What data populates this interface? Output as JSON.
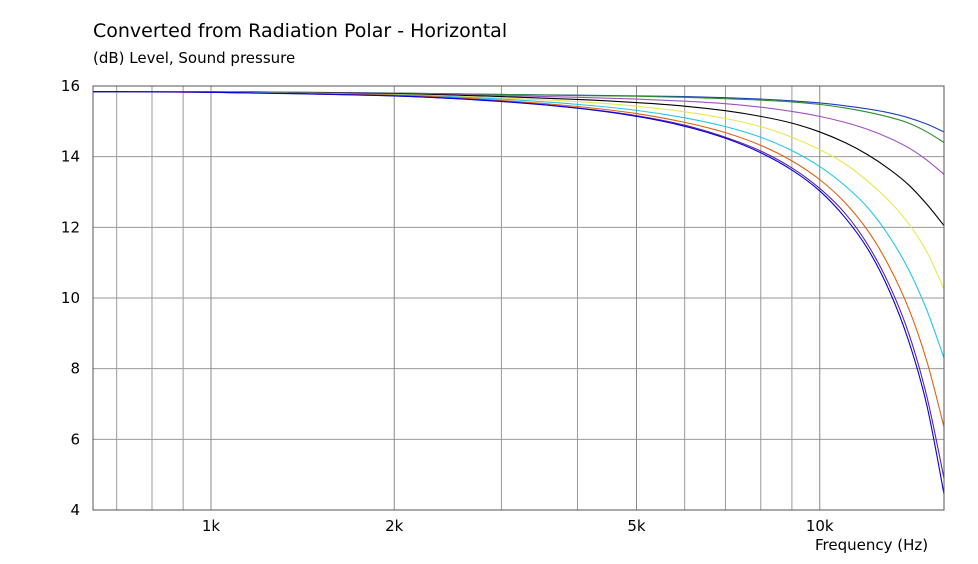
{
  "chart_data": {
    "type": "line",
    "title": "Converted from Radiation Polar - Horizontal",
    "ylabel": "(dB)  Level, Sound pressure",
    "xlabel": "Frequency  (Hz)",
    "x_scale": "log",
    "xlim": [
      640,
      16000
    ],
    "ylim": [
      4,
      16
    ],
    "y_ticks": [
      4,
      6,
      8,
      10,
      12,
      14,
      16
    ],
    "x_ticks": [
      {
        "value": 1000,
        "label": "1k"
      },
      {
        "value": 2000,
        "label": "2k"
      },
      {
        "value": 5000,
        "label": "5k"
      },
      {
        "value": 10000,
        "label": "10k"
      }
    ],
    "x_minor_gridlines": [
      700,
      800,
      900,
      3000,
      4000,
      6000,
      7000,
      8000,
      9000
    ],
    "grid": true,
    "x": [
      640,
      1000,
      2000,
      3000,
      4000,
      5000,
      6000,
      7000,
      8000,
      9000,
      10000,
      11000,
      12000,
      13000,
      14000,
      15000,
      16000
    ],
    "series": [
      {
        "color": "#1f3fbf",
        "values": [
          15.84,
          15.84,
          15.8,
          15.76,
          15.74,
          15.72,
          15.7,
          15.67,
          15.63,
          15.58,
          15.52,
          15.44,
          15.35,
          15.24,
          15.1,
          14.92,
          14.7
        ]
      },
      {
        "color": "#2e8b2e",
        "values": [
          15.84,
          15.84,
          15.8,
          15.76,
          15.73,
          15.71,
          15.68,
          15.64,
          15.6,
          15.55,
          15.48,
          15.38,
          15.26,
          15.12,
          14.95,
          14.7,
          14.4
        ]
      },
      {
        "color": "#a050c0",
        "values": [
          15.84,
          15.84,
          15.79,
          15.73,
          15.68,
          15.63,
          15.57,
          15.5,
          15.4,
          15.28,
          15.14,
          14.97,
          14.77,
          14.53,
          14.25,
          13.9,
          13.5
        ]
      },
      {
        "color": "#000000",
        "values": [
          15.84,
          15.83,
          15.78,
          15.7,
          15.62,
          15.53,
          15.43,
          15.3,
          15.14,
          14.95,
          14.7,
          14.4,
          14.05,
          13.65,
          13.2,
          12.65,
          12.05
        ]
      },
      {
        "color": "#e8e850",
        "values": [
          15.84,
          15.83,
          15.76,
          15.66,
          15.56,
          15.43,
          15.27,
          15.08,
          14.85,
          14.55,
          14.2,
          13.8,
          13.3,
          12.75,
          12.1,
          11.3,
          10.25
        ]
      },
      {
        "color": "#22c8e8",
        "values": [
          15.84,
          15.83,
          15.75,
          15.63,
          15.48,
          15.31,
          15.1,
          14.85,
          14.55,
          14.17,
          13.72,
          13.18,
          12.55,
          11.75,
          10.8,
          9.65,
          8.3
        ]
      },
      {
        "color": "#e06010",
        "values": [
          15.84,
          15.82,
          15.74,
          15.59,
          15.42,
          15.22,
          14.97,
          14.68,
          14.32,
          13.88,
          13.35,
          12.7,
          11.9,
          10.9,
          9.7,
          8.2,
          6.35
        ]
      },
      {
        "color": "#6020a0",
        "values": [
          15.84,
          15.82,
          15.72,
          15.57,
          15.38,
          15.16,
          14.89,
          14.55,
          14.16,
          13.68,
          13.1,
          12.4,
          11.5,
          10.38,
          9.0,
          7.2,
          4.9
        ]
      },
      {
        "color": "#0000e0",
        "values": [
          15.84,
          15.82,
          15.72,
          15.56,
          15.37,
          15.14,
          14.86,
          14.52,
          14.11,
          13.62,
          13.03,
          12.28,
          11.38,
          10.22,
          8.78,
          6.95,
          4.45
        ]
      }
    ]
  }
}
